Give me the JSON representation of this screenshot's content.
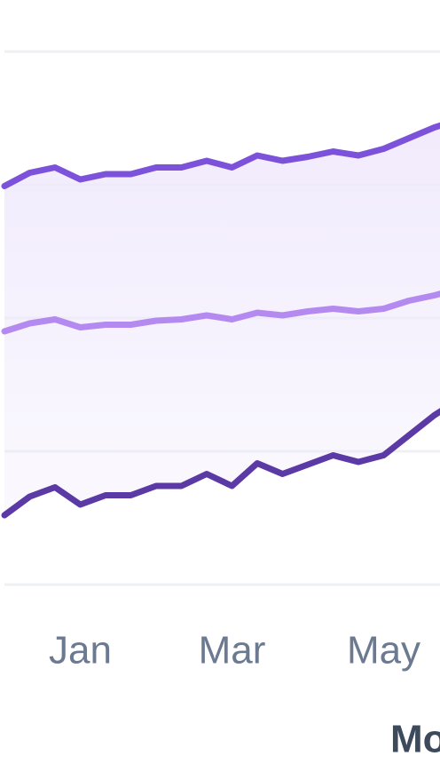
{
  "chart_data": {
    "type": "line",
    "categories": [
      null,
      null,
      null,
      "Jan",
      null,
      null,
      null,
      null,
      null,
      "Mar",
      null,
      null,
      null,
      null,
      null,
      "May",
      null,
      null,
      null
    ],
    "series": [
      {
        "color": "#7b52d9",
        "values": [
          2.99,
          3.09,
          3.13,
          3.04,
          3.08,
          3.08,
          3.13,
          3.13,
          3.18,
          3.13,
          3.22,
          3.18,
          3.21,
          3.25,
          3.22,
          3.27,
          3.35,
          3.43,
          3.49
        ]
      },
      {
        "color": "#b48af0",
        "values": [
          1.9,
          1.96,
          1.99,
          1.93,
          1.95,
          1.95,
          1.98,
          1.99,
          2.02,
          1.99,
          2.04,
          2.02,
          2.05,
          2.07,
          2.05,
          2.07,
          2.13,
          2.17,
          2.22
        ]
      },
      {
        "color": "#5b3aa6",
        "values": [
          0.52,
          0.66,
          0.73,
          0.6,
          0.67,
          0.67,
          0.74,
          0.74,
          0.83,
          0.74,
          0.91,
          0.83,
          0.9,
          0.97,
          0.92,
          0.97,
          1.12,
          1.27,
          1.39
        ]
      }
    ],
    "x_label": "Mo",
    "ylim": [
      0,
      4
    ],
    "yticks": [
      0,
      1,
      2,
      3,
      4
    ],
    "grid": true,
    "band_fill": "#efe8fc"
  }
}
